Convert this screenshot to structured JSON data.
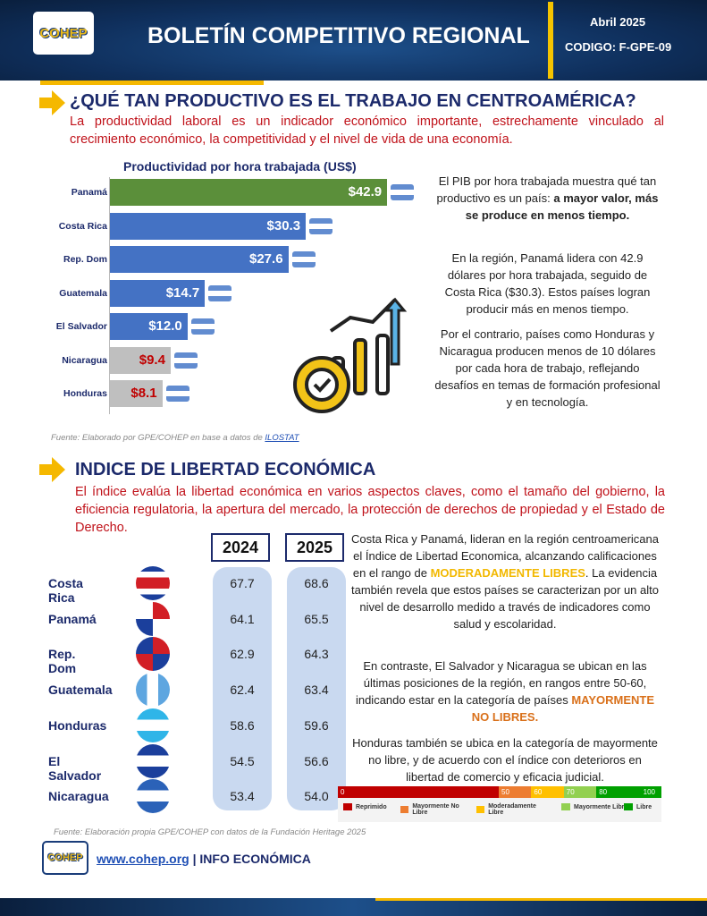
{
  "header": {
    "logo": "COHEP",
    "title": "BOLETÍN COMPETITIVO REGIONAL",
    "date": "Abril 2025",
    "code": "CODIGO: F-GPE-09"
  },
  "section1": {
    "title": "¿QUÉ TAN PRODUCTIVO ES EL TRABAJO EN CENTROAMÉRICA?",
    "intro": "La productividad laboral es un indicador económico importante, estrechamente vinculado al crecimiento económico, la competitividad y el nivel de vida de una economía.",
    "p1_a": "El PIB por hora trabajada muestra qué tan productivo es un país: ",
    "p1_b": "a mayor valor, más se produce en menos tiempo.",
    "p2": "En la región, Panamá lidera con 42.9 dólares por hora trabajada, seguido de Costa Rica ($30.3). Estos países logran producir más en menos tiempo.",
    "p3": "Por el contrario, países como Honduras y Nicaragua producen menos de 10 dólares por cada hora de trabajo, reflejando desafíos en temas de formación profesional y en tecnología.",
    "source_a": "Fuente: Elaborado por GPE/COHEP en base a datos de ",
    "source_link": "ILOSTAT"
  },
  "chart_data": {
    "type": "bar",
    "orientation": "horizontal",
    "title": "Productividad por hora trabajada (US$)",
    "categories": [
      "Panamá",
      "Costa Rica",
      "Rep. Dom",
      "Guatemala",
      "El Salvador",
      "Nicaragua",
      "Honduras"
    ],
    "values": [
      42.9,
      30.3,
      27.6,
      14.7,
      12.0,
      9.4,
      8.1
    ],
    "labels": [
      "$42.9",
      "$30.3",
      "$27.6",
      "$14.7",
      "$12.0",
      "$9.4",
      "$8.1"
    ],
    "colors": [
      "#5b8f3a",
      "#4472c4",
      "#4472c4",
      "#4472c4",
      "#4472c4",
      "#bfbfbf",
      "#bfbfbf"
    ],
    "label_colors": [
      "#ffffff",
      "#ffffff",
      "#ffffff",
      "#ffffff",
      "#ffffff",
      "#c00000",
      "#c00000"
    ]
  },
  "section2": {
    "title": "INDICE DE LIBERTAD ECONÓMICA",
    "intro": "El índice evalúa la libertad económica en varios aspectos claves, como el tamaño del gobierno, la eficiencia regulatoria, la apertura del mercado, la protección de derechos de propiedad y el Estado de Derecho.",
    "years": [
      "2024",
      "2025"
    ],
    "rows": [
      {
        "country": "Costa Rica",
        "v2024": "67.7",
        "v2025": "68.6"
      },
      {
        "country": "Panamá",
        "v2024": "64.1",
        "v2025": "65.5"
      },
      {
        "country": "Rep. Dom",
        "v2024": "62.9",
        "v2025": "64.3"
      },
      {
        "country": "Guatemala",
        "v2024": "62.4",
        "v2025": "63.4"
      },
      {
        "country": "Honduras",
        "v2024": "58.6",
        "v2025": "59.6"
      },
      {
        "country": "El Salvador",
        "v2024": "54.5",
        "v2025": "56.6"
      },
      {
        "country": "Nicaragua",
        "v2024": "53.4",
        "v2025": "54.0"
      }
    ],
    "p1_a": "Costa Rica y Panamá, lideran en la región centroamericana el Índice de Libertad Economica, alcanzando calificaciones en el rango de ",
    "p1_hl": "MODERADAMENTE LIBRES",
    "p1_b": ". La evidencia también revela que estos países se caracterizan por un alto nivel de desarrollo medido a través de indicadores como salud y escolaridad.",
    "p2_a": "En contraste, El Salvador y Nicaragua se ubican en las últimas posiciones de la región, en rangos entre 50-60, indicando estar en la categoría de países ",
    "p2_hl": "MAYORMENTE NO LIBRES.",
    "p3": "Honduras también se ubica en la categoría de mayormente no libre, y de acuerdo con el índice con deterioros en libertad de comercio y eficacia judicial.",
    "scale": {
      "ticks": [
        "0",
        "50",
        "60",
        "70",
        "80",
        "100"
      ],
      "legend": [
        {
          "label": "Reprimido",
          "color": "#c00000"
        },
        {
          "label": "Mayormente No Libre",
          "color": "#ed7d31"
        },
        {
          "label": "Moderadamente Libre",
          "color": "#ffc000"
        },
        {
          "label": "Mayormente Libre",
          "color": "#92d050"
        },
        {
          "label": "Libre",
          "color": "#00a000"
        }
      ]
    },
    "source": "Fuente: Elaboración propia GPE/COHEP con datos de la Fundación Heritage 2025"
  },
  "footer": {
    "logo": "COHEP",
    "link": "www.cohep.org",
    "sep": " | ",
    "label": "INFO ECONÓMICA"
  }
}
